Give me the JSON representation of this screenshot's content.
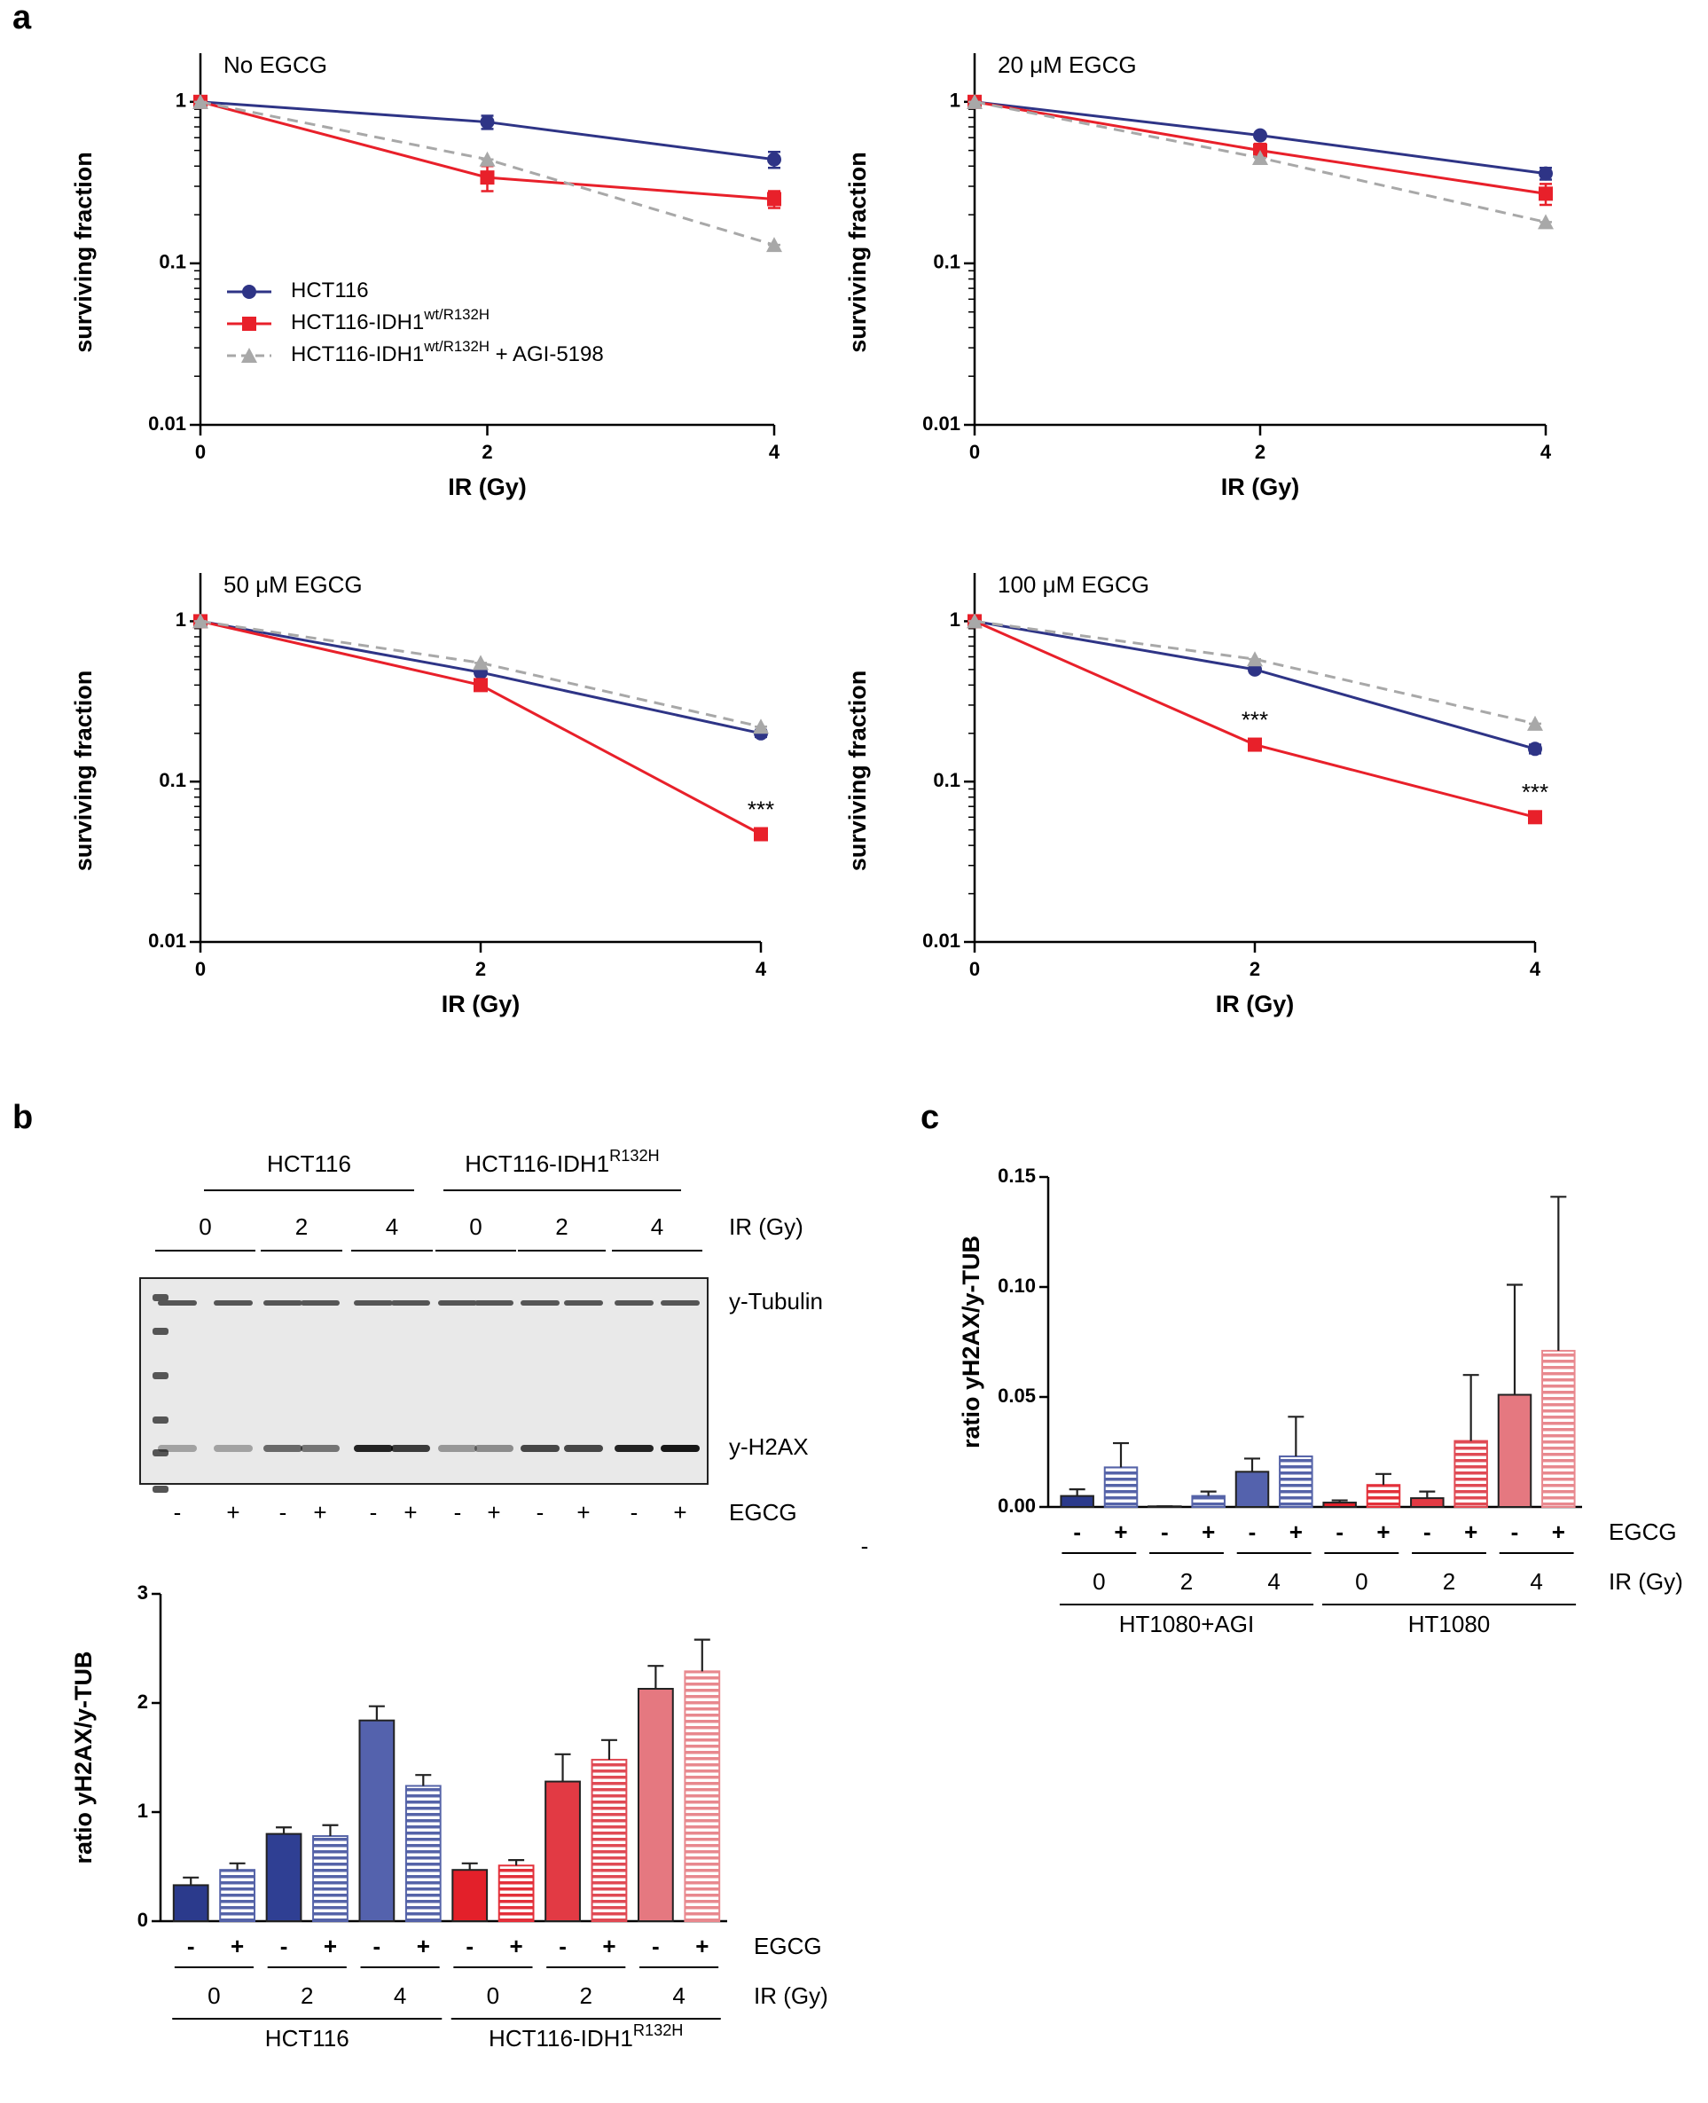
{
  "panel_labels": [
    "a",
    "b",
    "c"
  ],
  "chart_data": [
    {
      "type": "line",
      "log_y": true,
      "title": "No  EGCG",
      "xlabel": "IR (Gy)",
      "ylabel": "surviving fraction",
      "x": [
        0,
        2,
        4
      ],
      "xlim": [
        0,
        4
      ],
      "xticks": [
        0,
        2,
        4
      ],
      "ylim": [
        0.01,
        2
      ],
      "yticks": [
        0.01,
        0.1,
        1
      ],
      "legend": "lower left",
      "series": [
        {
          "name": "HCT116",
          "color": "#2e3486",
          "marker": "circle",
          "dashed": false,
          "values": [
            1,
            0.75,
            0.44
          ],
          "errors": [
            0,
            0.07,
            0.05
          ]
        },
        {
          "name": "HCT116-IDH1",
          "name_sup": "wt/R132H",
          "color": "#e8202a",
          "marker": "square",
          "dashed": false,
          "values": [
            1,
            0.34,
            0.25
          ],
          "errors": [
            0,
            0.06,
            0.03
          ]
        },
        {
          "name": "HCT116-IDH1",
          "name_sup": "wt/R132H",
          "name_suffix": " + AGI-5198",
          "color": "#a8a8a8",
          "marker": "triangle",
          "dashed": true,
          "values": [
            1,
            0.44,
            0.13
          ],
          "errors": [
            0,
            0,
            0
          ]
        }
      ]
    },
    {
      "type": "line",
      "log_y": true,
      "title": "20 μM EGCG",
      "xlabel": "IR (Gy)",
      "ylabel": "surviving fraction",
      "x": [
        0,
        2,
        4
      ],
      "xlim": [
        0,
        4
      ],
      "xticks": [
        0,
        2,
        4
      ],
      "ylim": [
        0.01,
        2
      ],
      "yticks": [
        0.01,
        0.1,
        1
      ],
      "series": [
        {
          "color": "#2e3486",
          "marker": "circle",
          "dashed": false,
          "values": [
            1,
            0.62,
            0.36
          ],
          "errors": [
            0,
            0.02,
            0.03
          ]
        },
        {
          "color": "#e8202a",
          "marker": "square",
          "dashed": false,
          "values": [
            1,
            0.5,
            0.27
          ],
          "errors": [
            0,
            0.05,
            0.04
          ]
        },
        {
          "color": "#a8a8a8",
          "marker": "triangle",
          "dashed": true,
          "values": [
            1,
            0.45,
            0.18
          ],
          "errors": [
            0,
            0,
            0
          ]
        }
      ]
    },
    {
      "type": "line",
      "log_y": true,
      "title": "50 μM EGCG",
      "xlabel": "IR (Gy)",
      "ylabel": "surviving fraction",
      "x": [
        0,
        2,
        4
      ],
      "xlim": [
        0,
        4
      ],
      "xticks": [
        0,
        2,
        4
      ],
      "ylim": [
        0.01,
        2
      ],
      "yticks": [
        0.01,
        0.1,
        1
      ],
      "annotations": [
        {
          "text": "***",
          "x": 4,
          "y": 0.047
        }
      ],
      "series": [
        {
          "color": "#2e3486",
          "marker": "circle",
          "dashed": false,
          "values": [
            1,
            0.48,
            0.2
          ],
          "errors": [
            0,
            0.02,
            0.01
          ]
        },
        {
          "color": "#e8202a",
          "marker": "square",
          "dashed": false,
          "values": [
            1,
            0.4,
            0.047
          ],
          "errors": [
            0,
            0.02,
            0.003
          ]
        },
        {
          "color": "#a8a8a8",
          "marker": "triangle",
          "dashed": true,
          "values": [
            1,
            0.55,
            0.22
          ],
          "errors": [
            0,
            0,
            0
          ]
        }
      ]
    },
    {
      "type": "line",
      "log_y": true,
      "title": "100 μM EGCG",
      "xlabel": "IR (Gy)",
      "ylabel": "surviving fraction",
      "x": [
        0,
        2,
        4
      ],
      "xlim": [
        0,
        4
      ],
      "xticks": [
        0,
        2,
        4
      ],
      "ylim": [
        0.01,
        2
      ],
      "yticks": [
        0.01,
        0.1,
        1
      ],
      "annotations": [
        {
          "text": "***",
          "x": 2,
          "y": 0.17
        },
        {
          "text": "***",
          "x": 4,
          "y": 0.06
        }
      ],
      "series": [
        {
          "color": "#2e3486",
          "marker": "circle",
          "dashed": false,
          "values": [
            1,
            0.5,
            0.16
          ],
          "errors": [
            0,
            0.02,
            0.01
          ]
        },
        {
          "color": "#e8202a",
          "marker": "square",
          "dashed": false,
          "values": [
            1,
            0.17,
            0.06
          ],
          "errors": [
            0,
            0.01,
            0.004
          ]
        },
        {
          "color": "#a8a8a8",
          "marker": "triangle",
          "dashed": true,
          "values": [
            1,
            0.58,
            0.23
          ],
          "errors": [
            0,
            0,
            0
          ]
        }
      ]
    },
    {
      "type": "bar",
      "ylabel": "ratio yH2AX/y-TUB",
      "ylim": [
        0,
        3
      ],
      "yticks": [
        0,
        1,
        2,
        3
      ],
      "categories": [
        "-",
        "+",
        "-",
        "+",
        "-",
        "+",
        "-",
        "+",
        "-",
        "+",
        "-",
        "+"
      ],
      "values": [
        0.33,
        0.47,
        0.8,
        0.78,
        1.84,
        1.24,
        0.47,
        0.51,
        1.28,
        1.48,
        2.13,
        2.29
      ],
      "errors": [
        0.07,
        0.06,
        0.06,
        0.1,
        0.13,
        0.1,
        0.06,
        0.05,
        0.25,
        0.18,
        0.21,
        0.29
      ],
      "colors": [
        "#2b3a8c",
        "#5563a8",
        "#2f3f93",
        "#5563a8",
        "#5462ad",
        "#5563a8",
        "#e3202a",
        "#e3303a",
        "#e23a44",
        "#e04a54",
        "#e57880",
        "#e8888e"
      ],
      "patterns": [
        "solid",
        "striped",
        "solid",
        "striped",
        "solid",
        "striped",
        "solid",
        "striped",
        "solid",
        "striped",
        "solid",
        "striped"
      ],
      "category_label": "EGCG",
      "doses": [
        "0",
        "2",
        "4",
        "0",
        "2",
        "4"
      ],
      "dose_label": "IR (Gy)",
      "groups": [
        {
          "text": "HCT116"
        },
        {
          "text": "HCT116-IDH1",
          "sup": "R132H"
        }
      ]
    },
    {
      "type": "bar",
      "ylabel": "ratio yH2AX/y-TUB",
      "ylim": [
        0,
        0.15
      ],
      "yticks": [
        {
          "value": 0,
          "label": "0.00"
        },
        {
          "value": 0.05,
          "label": "0.05"
        },
        {
          "value": 0.1,
          "label": "0.10"
        },
        {
          "value": 0.15,
          "label": "0.15"
        }
      ],
      "categories": [
        "-",
        "+",
        "-",
        "+",
        "-",
        "+",
        "-",
        "+",
        "-",
        "+",
        "-",
        "+"
      ],
      "values": [
        0.005,
        0.018,
        0.0003,
        0.005,
        0.016,
        0.023,
        0.002,
        0.01,
        0.004,
        0.03,
        0.051,
        0.071
      ],
      "errors": [
        0.003,
        0.011,
        0,
        0.002,
        0.006,
        0.018,
        0.001,
        0.005,
        0.003,
        0.03,
        0.05,
        0.07
      ],
      "colors": [
        "#2b3a8c",
        "#5563a8",
        "#2f3f93",
        "#5563a8",
        "#5462ad",
        "#5563a8",
        "#e3202a",
        "#e3303a",
        "#e23a44",
        "#e04a54",
        "#e57880",
        "#e8888e"
      ],
      "patterns": [
        "solid",
        "striped",
        "solid",
        "striped",
        "solid",
        "striped",
        "solid",
        "striped",
        "solid",
        "striped",
        "solid",
        "striped"
      ],
      "category_label": "EGCG",
      "doses": [
        "0",
        "2",
        "4",
        "0",
        "2",
        "4"
      ],
      "dose_label": "IR (Gy)",
      "groups": [
        {
          "text": "HT1080+AGI"
        },
        {
          "text": "HT1080"
        }
      ]
    }
  ],
  "blot": {
    "groups": [
      {
        "text": "HCT116"
      },
      {
        "text": "HCT116-IDH1",
        "sup": "R132H"
      }
    ],
    "doses": [
      "0",
      "2",
      "4",
      "0",
      "2",
      "4"
    ],
    "dose_label": "IR (Gy)",
    "bands": [
      "y-Tubulin",
      "y-H2AX"
    ],
    "treatments": [
      "-",
      "+",
      "-",
      "+",
      "-",
      "+",
      "-",
      "+",
      "-",
      "+",
      "-",
      "+"
    ],
    "treatment_label": "EGCG",
    "stray_mark": "-"
  }
}
